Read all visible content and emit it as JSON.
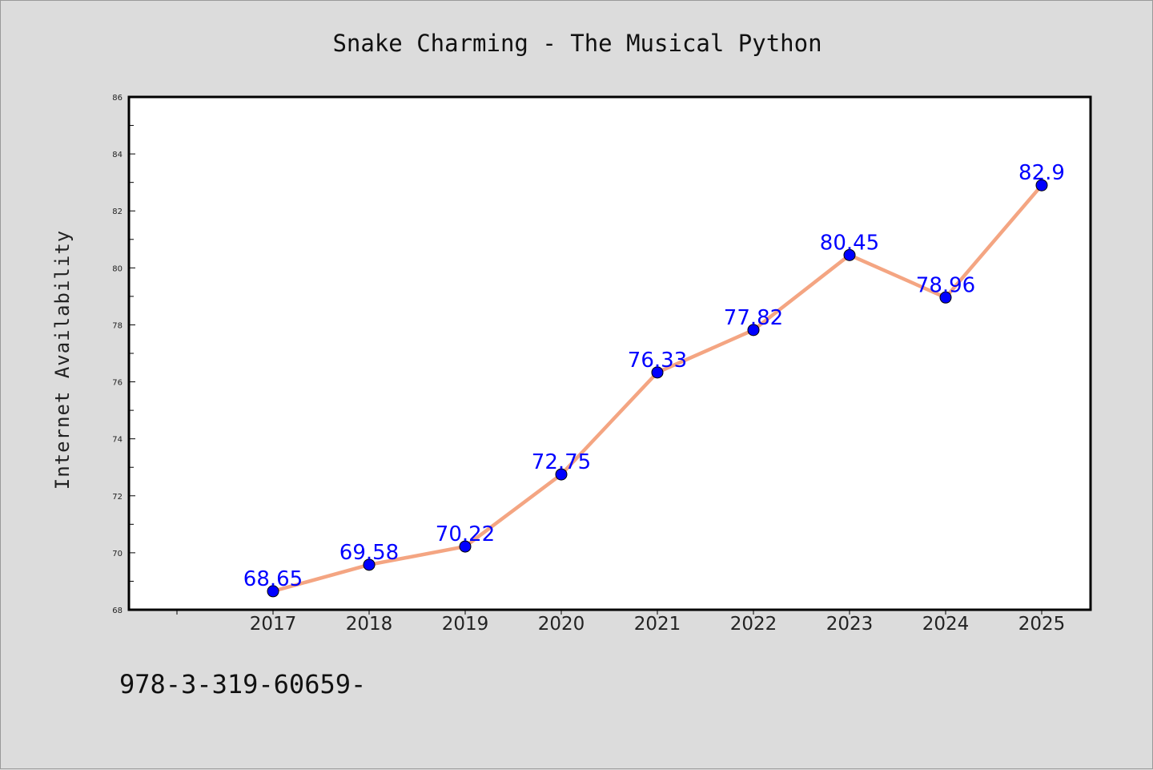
{
  "chart_data": {
    "type": "line",
    "title": "Snake Charming - The Musical Python",
    "xlabel": "",
    "ylabel": "Internet Availability",
    "categories": [
      "2017",
      "2018",
      "2019",
      "2020",
      "2021",
      "2022",
      "2023",
      "2024",
      "2025"
    ],
    "series": [
      {
        "values": [
          68.65,
          69.58,
          70.22,
          72.75,
          76.33,
          77.82,
          80.45,
          78.96,
          82.9
        ],
        "data_labels": [
          "68.65",
          "69.58",
          "70.22",
          "72.75",
          "76.33",
          "77.82",
          "80.45",
          "78.96",
          "82.9"
        ],
        "line_color": "#f4a582",
        "marker_color": "#0000ff"
      }
    ],
    "ylim": [
      68,
      86
    ],
    "yticks": [
      "68",
      "70",
      "72",
      "74",
      "76",
      "78",
      "80",
      "82",
      "84",
      "86"
    ],
    "grid": false,
    "legend": "none",
    "background_color": "#dcdcdc",
    "plot_background_color": "#ffffff"
  },
  "footnote": "978-3-319-60659-"
}
